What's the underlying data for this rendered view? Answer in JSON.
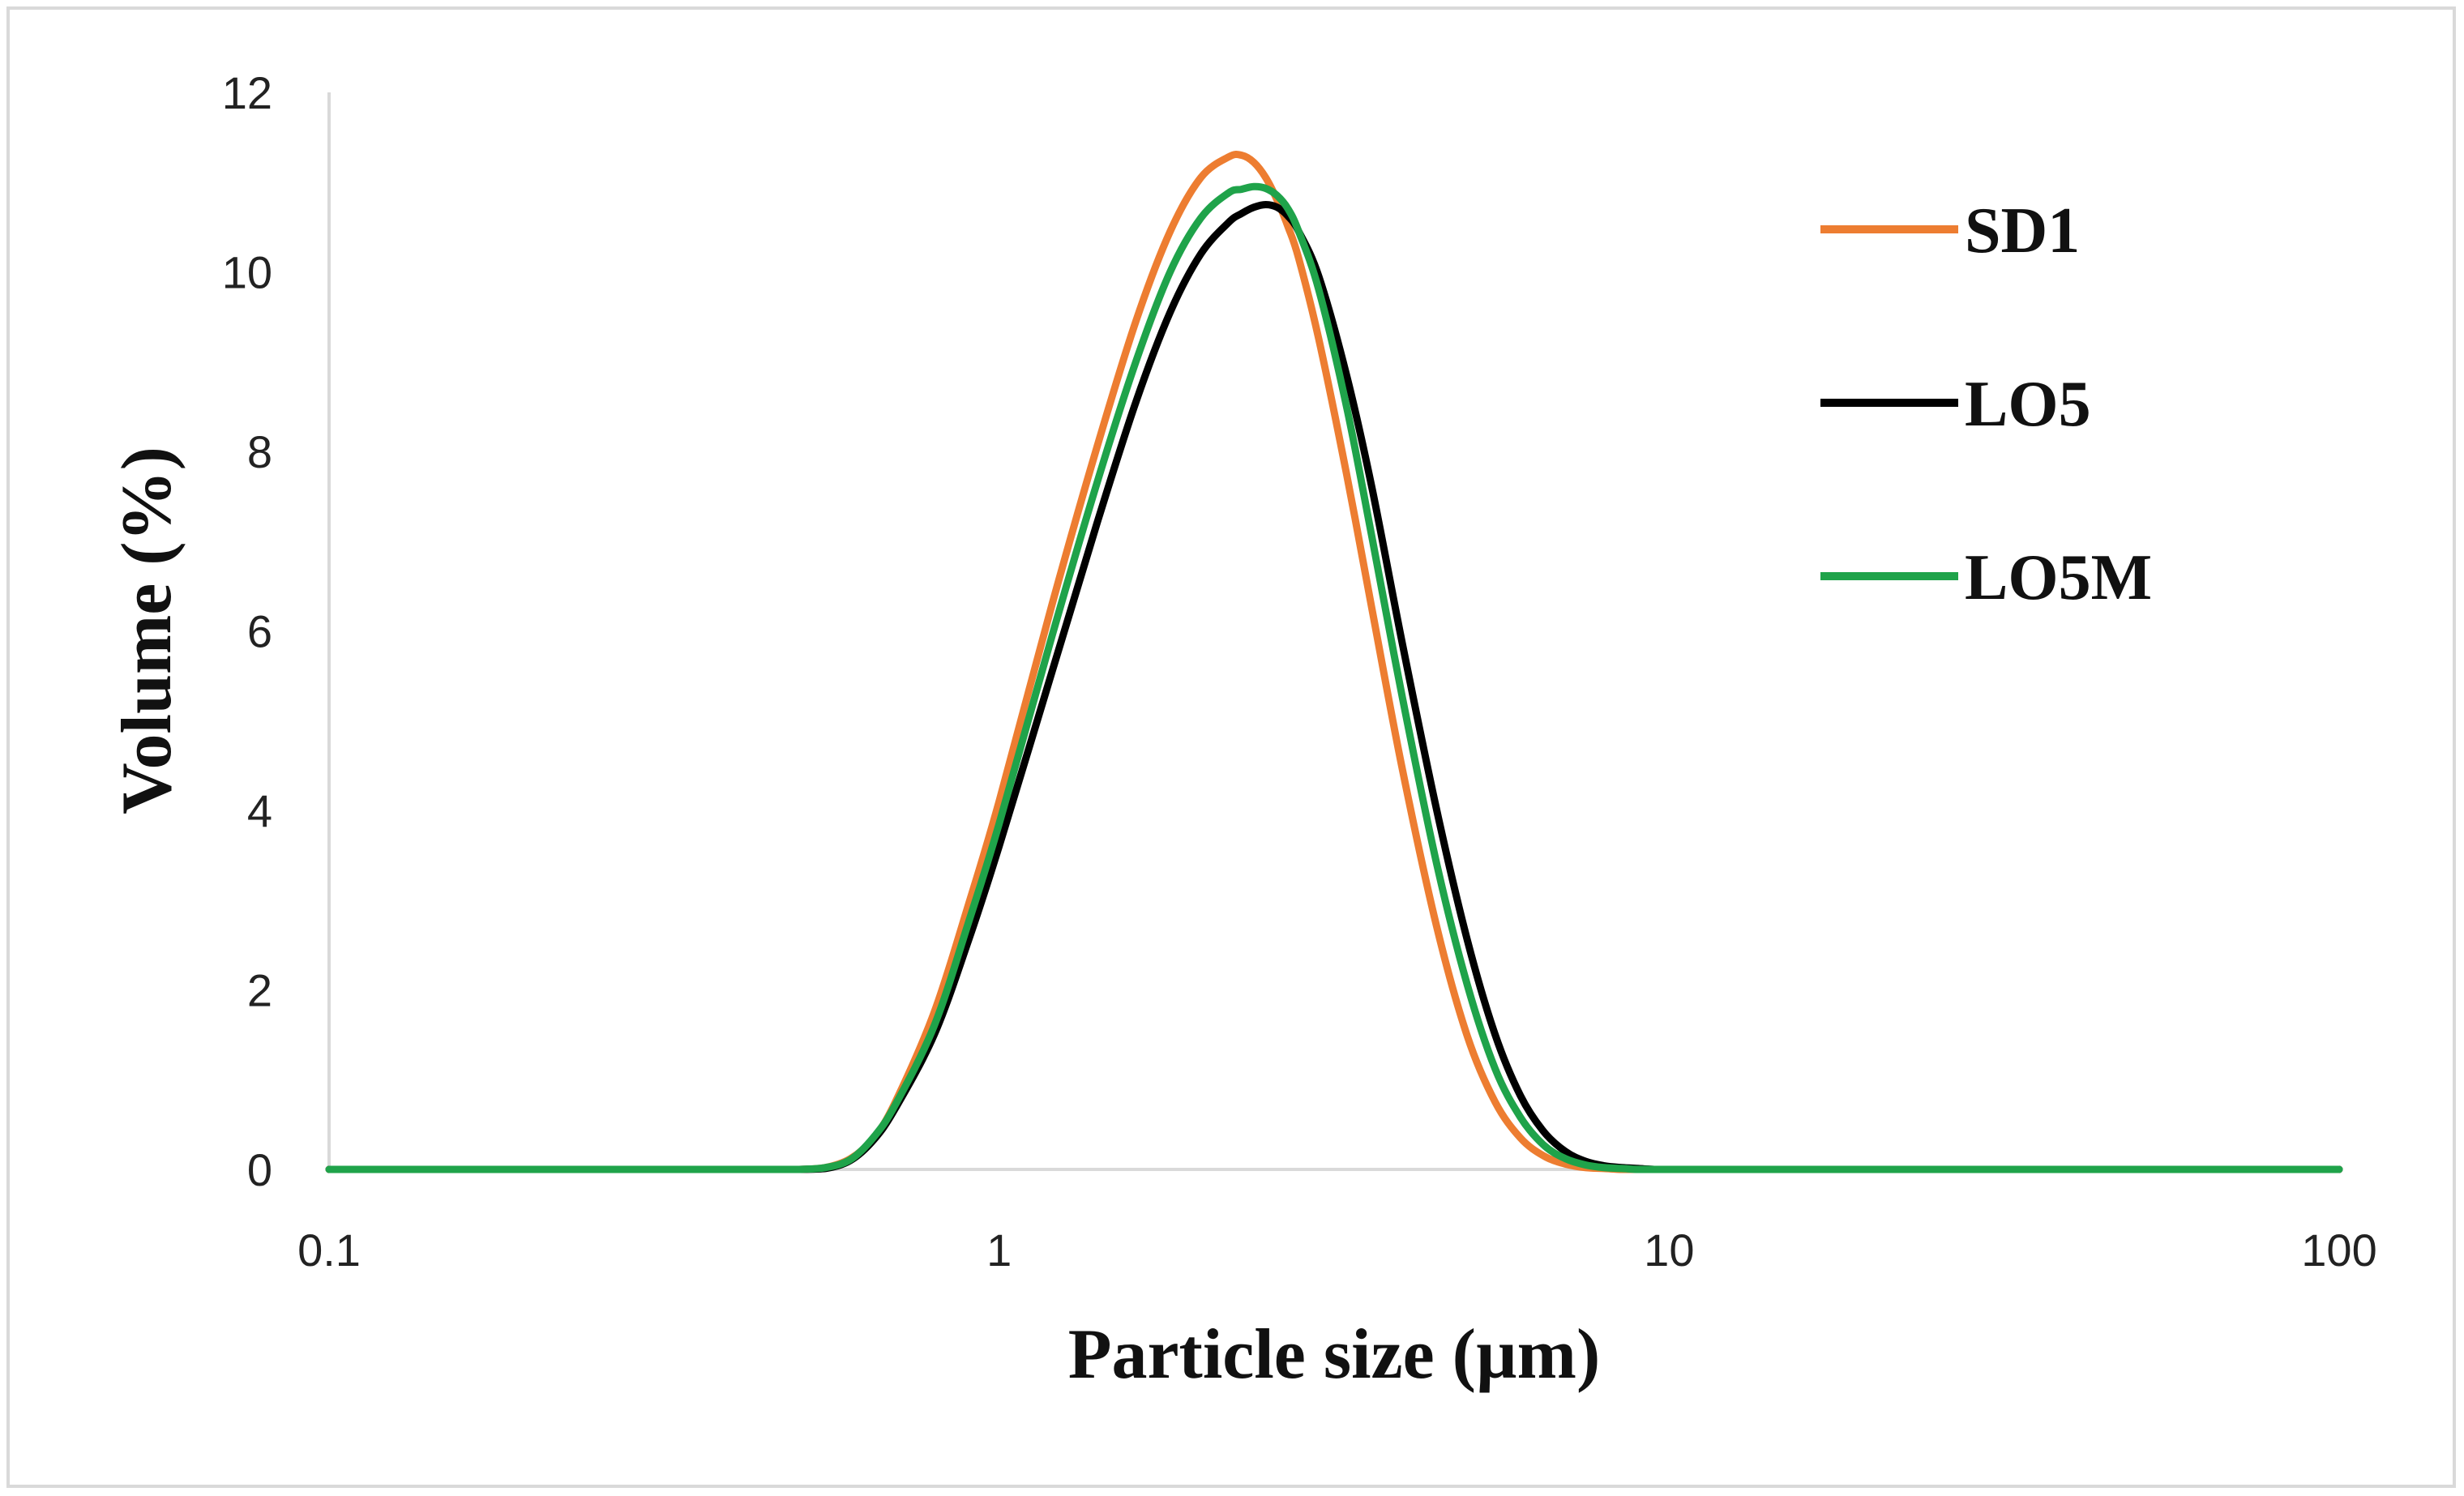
{
  "chart_data": {
    "type": "line",
    "title": "",
    "xlabel": "Particle size (µm)",
    "ylabel": "Volume (%)",
    "xscale": "log",
    "xlim": [
      0.1,
      100
    ],
    "ylim": [
      0,
      12
    ],
    "x_ticks": [
      0.1,
      1,
      10,
      100
    ],
    "x_tick_labels": [
      "0.1",
      "1",
      "10",
      "100"
    ],
    "y_ticks": [
      0,
      2,
      4,
      6,
      8,
      10,
      12
    ],
    "y_tick_labels": [
      "0",
      "2",
      "4",
      "6",
      "8",
      "10",
      "12"
    ],
    "grid": false,
    "legend_position": "top-right",
    "x": [
      0.1,
      0.2,
      0.3,
      0.45,
      0.5,
      0.55,
      0.6,
      0.65,
      0.7,
      0.8,
      0.9,
      1.0,
      1.2,
      1.4,
      1.6,
      1.8,
      2.0,
      2.2,
      2.3,
      2.4,
      2.5,
      2.6,
      2.7,
      2.8,
      3.0,
      3.3,
      3.6,
      4.0,
      4.5,
      5.0,
      5.5,
      6.0,
      6.5,
      7.0,
      7.5,
      8.0,
      8.5,
      9.0,
      9.5,
      10,
      12,
      20,
      50,
      100
    ],
    "series": [
      {
        "name": "SD1",
        "color": "#ED7D31",
        "values": [
          0,
          0,
          0,
          0,
          0,
          0.02,
          0.12,
          0.35,
          0.75,
          1.75,
          2.95,
          4.1,
          6.3,
          8.05,
          9.45,
          10.45,
          11.05,
          11.28,
          11.3,
          11.22,
          11.05,
          10.8,
          10.5,
          10.15,
          9.25,
          7.75,
          6.25,
          4.45,
          2.7,
          1.48,
          0.75,
          0.35,
          0.15,
          0.06,
          0.02,
          0.01,
          0,
          0,
          0,
          0,
          0,
          0,
          0,
          0
        ]
      },
      {
        "name": "LO5",
        "color": "#000000",
        "values": [
          0,
          0,
          0,
          0,
          0,
          0.01,
          0.1,
          0.33,
          0.68,
          1.5,
          2.55,
          3.6,
          5.55,
          7.2,
          8.55,
          9.55,
          10.2,
          10.55,
          10.65,
          10.72,
          10.75,
          10.72,
          10.62,
          10.45,
          9.95,
          8.85,
          7.6,
          5.85,
          4.0,
          2.55,
          1.5,
          0.82,
          0.42,
          0.2,
          0.09,
          0.04,
          0.02,
          0.01,
          0,
          0,
          0,
          0,
          0,
          0
        ]
      },
      {
        "name": "LO5M",
        "color": "#1FA34A",
        "values": [
          0,
          0,
          0,
          0,
          0,
          0.02,
          0.11,
          0.36,
          0.72,
          1.6,
          2.75,
          3.85,
          5.95,
          7.65,
          9.0,
          10.0,
          10.6,
          10.88,
          10.92,
          10.95,
          10.93,
          10.85,
          10.7,
          10.45,
          9.8,
          8.5,
          7.05,
          5.25,
          3.4,
          2.05,
          1.12,
          0.58,
          0.27,
          0.12,
          0.05,
          0.02,
          0.01,
          0,
          0,
          0,
          0,
          0,
          0,
          0
        ]
      }
    ]
  }
}
